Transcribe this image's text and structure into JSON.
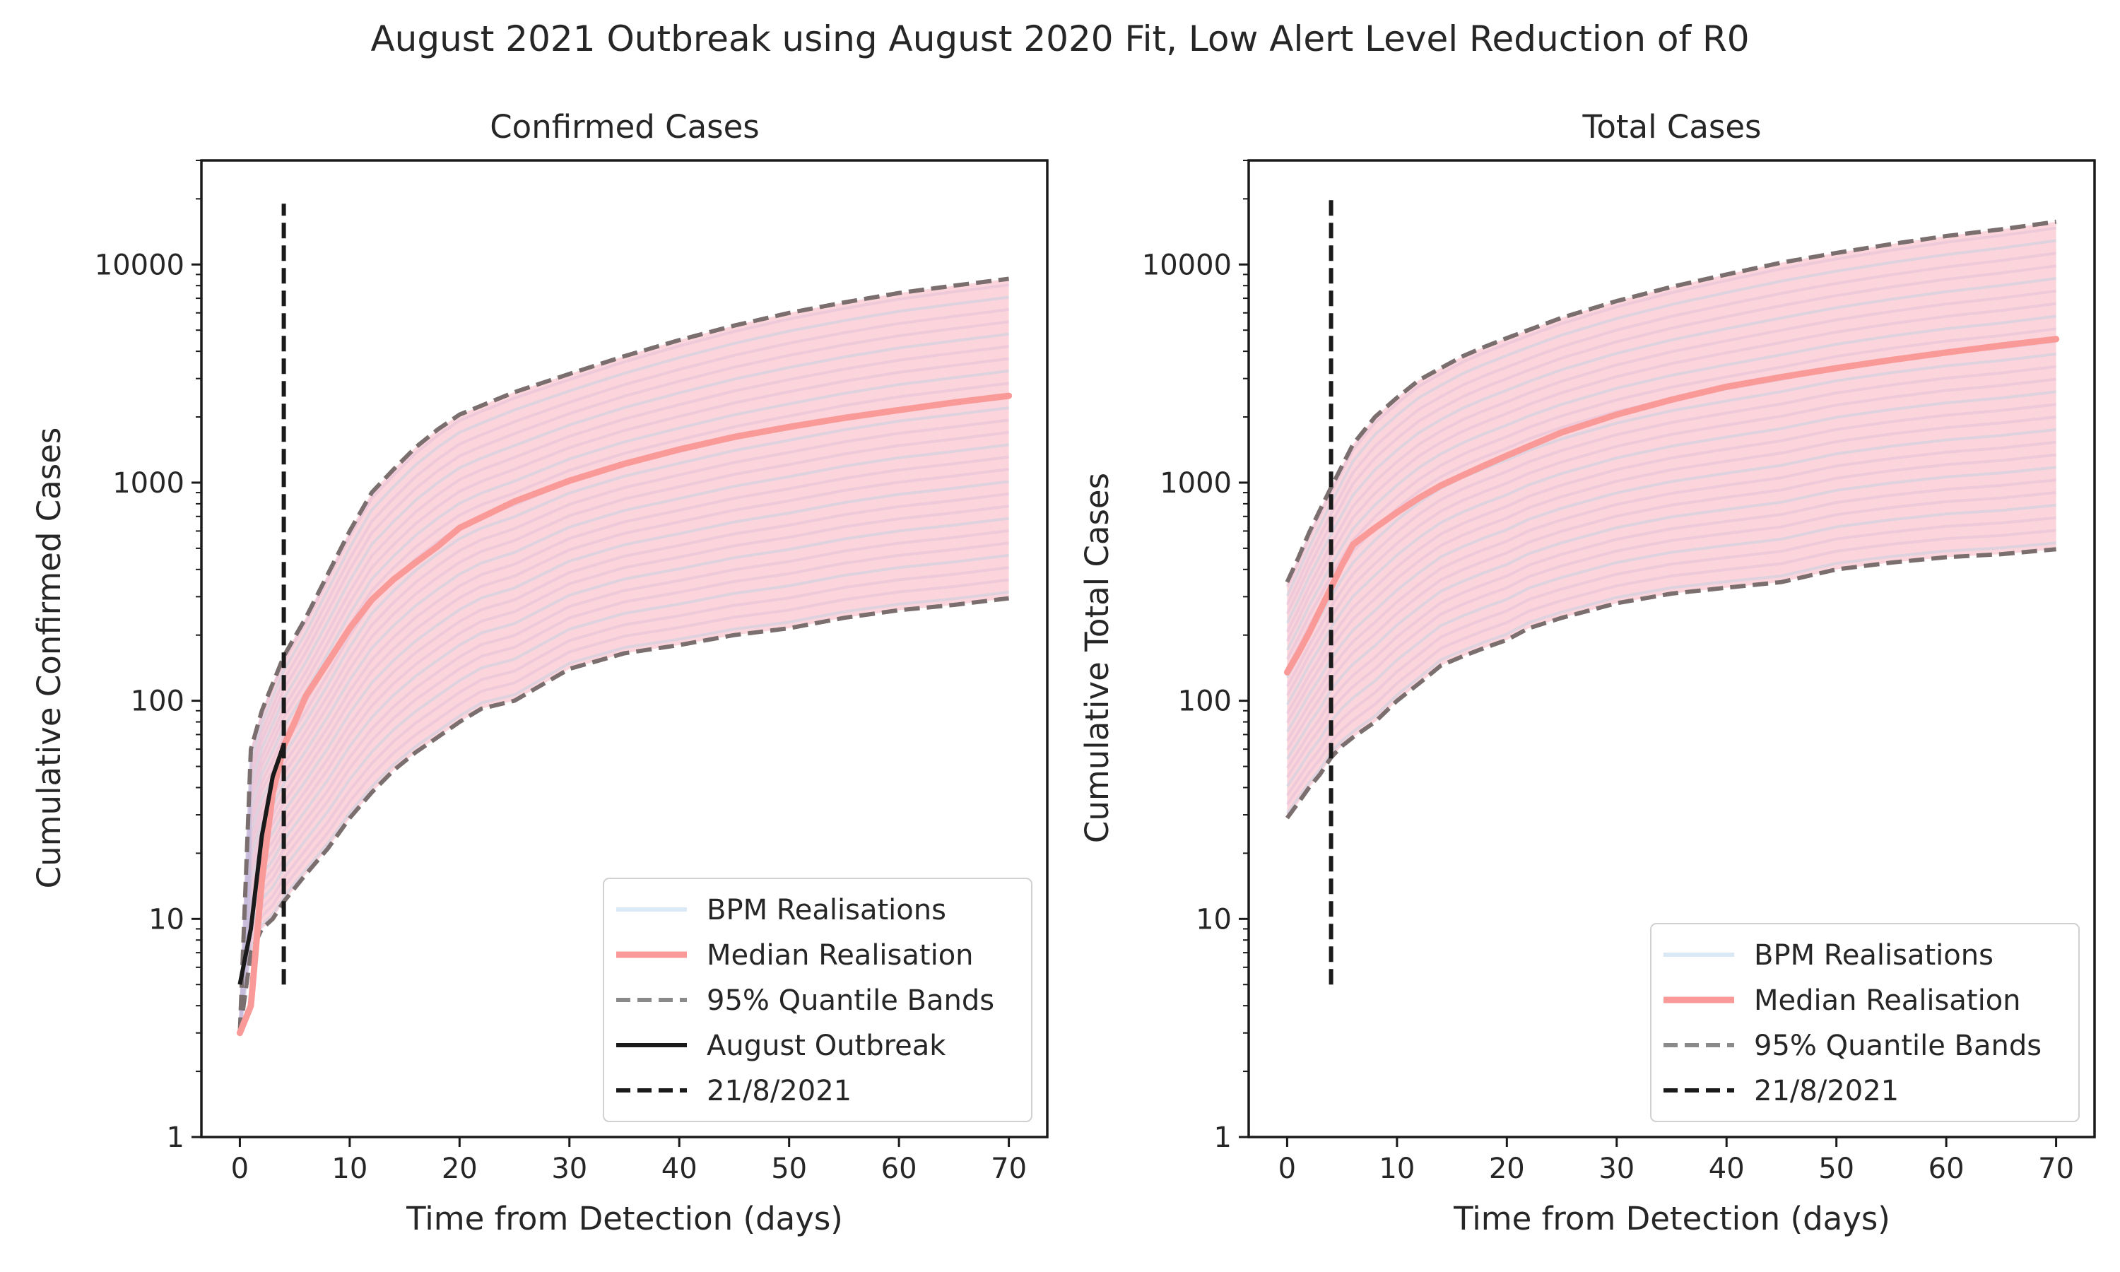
{
  "figure": {
    "suptitle": "August 2021 Outbreak using August 2020 Fit, Low Alert Level Reduction of R0"
  },
  "colors": {
    "realisation": "#a9cfe8",
    "realisation_pink": "#f9c7cf",
    "median": "#fa9a98",
    "quantile": "#7a6e6e",
    "outbreak": "#1a1a1a",
    "date_line": "#1a1a1a",
    "axis": "#1a1a1a"
  },
  "chart_data": [
    {
      "type": "line",
      "title": "Confirmed Cases",
      "xlabel": "Time from Detection (days)",
      "ylabel": "Cumulative Confirmed Cases",
      "yscale": "log",
      "xlim": [
        -3.5,
        73.5
      ],
      "ylim": [
        1,
        30000
      ],
      "xticks": [
        0,
        10,
        20,
        30,
        40,
        50,
        60,
        70
      ],
      "yticks": [
        {
          "value": 1,
          "label": "1"
        },
        {
          "value": 10,
          "label": "10"
        },
        {
          "value": 100,
          "label": "100"
        },
        {
          "value": 1000,
          "label": "1000"
        },
        {
          "value": 10000,
          "label": "10000"
        }
      ],
      "grid": false,
      "legend_position": "lower right",
      "legend": [
        "BPM Realisations",
        "Median Realisation",
        "95% Quantile Bands",
        "August Outbreak",
        "21/8/2021"
      ],
      "median": {
        "name": "Median Realisation",
        "x": [
          0,
          1,
          2,
          3,
          4,
          5,
          6,
          8,
          10,
          12,
          14,
          16,
          18,
          20,
          25,
          30,
          35,
          40,
          45,
          50,
          55,
          60,
          65,
          70
        ],
        "y": [
          3,
          4,
          15,
          38,
          62,
          80,
          105,
          150,
          215,
          290,
          360,
          430,
          510,
          620,
          820,
          1020,
          1220,
          1420,
          1620,
          1800,
          1980,
          2150,
          2330,
          2500
        ]
      },
      "upper_band": {
        "name": "95% Quantile Bands",
        "x": [
          0,
          1,
          2,
          3,
          4,
          6,
          8,
          10,
          12,
          14,
          16,
          18,
          20,
          25,
          30,
          35,
          40,
          45,
          50,
          55,
          60,
          65,
          70
        ],
        "y": [
          3,
          60,
          90,
          120,
          160,
          240,
          380,
          600,
          900,
          1150,
          1450,
          1750,
          2050,
          2600,
          3150,
          3800,
          4500,
          5250,
          6000,
          6700,
          7400,
          8000,
          8600
        ]
      },
      "lower_band": {
        "name": "95% Quantile Bands",
        "x": [
          0,
          1,
          2,
          3,
          4,
          6,
          8,
          10,
          12,
          14,
          16,
          18,
          20,
          22,
          25,
          30,
          35,
          40,
          45,
          50,
          55,
          60,
          65,
          70
        ],
        "y": [
          3,
          7,
          9,
          10,
          12,
          16,
          21,
          29,
          38,
          48,
          58,
          68,
          80,
          92,
          100,
          140,
          165,
          180,
          200,
          215,
          240,
          260,
          275,
          295
        ]
      },
      "august_outbreak": {
        "name": "August Outbreak",
        "x": [
          0,
          1,
          2,
          3,
          4
        ],
        "y": [
          5,
          9,
          24,
          45,
          63
        ]
      },
      "date_line": {
        "name": "21/8/2021",
        "x": 4,
        "y_range": [
          5,
          19000
        ]
      }
    },
    {
      "type": "line",
      "title": "Total Cases",
      "xlabel": "Time from Detection (days)",
      "ylabel": "Cumulative Total Cases",
      "yscale": "log",
      "xlim": [
        -3.5,
        73.5
      ],
      "ylim": [
        1,
        30000
      ],
      "xticks": [
        0,
        10,
        20,
        30,
        40,
        50,
        60,
        70
      ],
      "yticks": [
        {
          "value": 1,
          "label": "1"
        },
        {
          "value": 10,
          "label": "10"
        },
        {
          "value": 100,
          "label": "100"
        },
        {
          "value": 1000,
          "label": "1000"
        },
        {
          "value": 10000,
          "label": "10000"
        }
      ],
      "grid": false,
      "legend_position": "lower right",
      "legend": [
        "BPM Realisations",
        "Median Realisation",
        "95% Quantile Bands",
        "21/8/2021"
      ],
      "median": {
        "name": "Median Realisation",
        "x": [
          0,
          1,
          2,
          3,
          4,
          5,
          6,
          8,
          10,
          12,
          14,
          16,
          18,
          20,
          25,
          30,
          35,
          40,
          45,
          50,
          55,
          60,
          65,
          70
        ],
        "y": [
          135,
          165,
          205,
          260,
          330,
          420,
          520,
          620,
          730,
          850,
          970,
          1080,
          1200,
          1330,
          1700,
          2050,
          2400,
          2750,
          3050,
          3350,
          3650,
          3950,
          4250,
          4550
        ]
      },
      "upper_band": {
        "name": "95% Quantile Bands",
        "x": [
          0,
          1,
          2,
          3,
          4,
          6,
          8,
          10,
          12,
          14,
          16,
          18,
          20,
          25,
          30,
          35,
          40,
          45,
          50,
          55,
          60,
          65,
          70
        ],
        "y": [
          350,
          450,
          590,
          750,
          950,
          1500,
          2000,
          2450,
          2950,
          3350,
          3800,
          4200,
          4600,
          5700,
          6800,
          7900,
          9000,
          10200,
          11300,
          12400,
          13500,
          14500,
          15700
        ]
      },
      "lower_band": {
        "name": "95% Quantile Bands",
        "x": [
          0,
          1,
          2,
          3,
          4,
          5,
          6,
          8,
          10,
          12,
          14,
          16,
          18,
          20,
          22,
          25,
          30,
          35,
          40,
          45,
          50,
          55,
          60,
          65,
          70
        ],
        "y": [
          29,
          34,
          40,
          46,
          55,
          62,
          68,
          80,
          100,
          120,
          145,
          160,
          175,
          190,
          215,
          240,
          280,
          310,
          330,
          350,
          400,
          430,
          455,
          470,
          495
        ]
      },
      "date_line": {
        "name": "21/8/2021",
        "x": 4,
        "y_range": [
          5,
          20000
        ]
      }
    }
  ]
}
